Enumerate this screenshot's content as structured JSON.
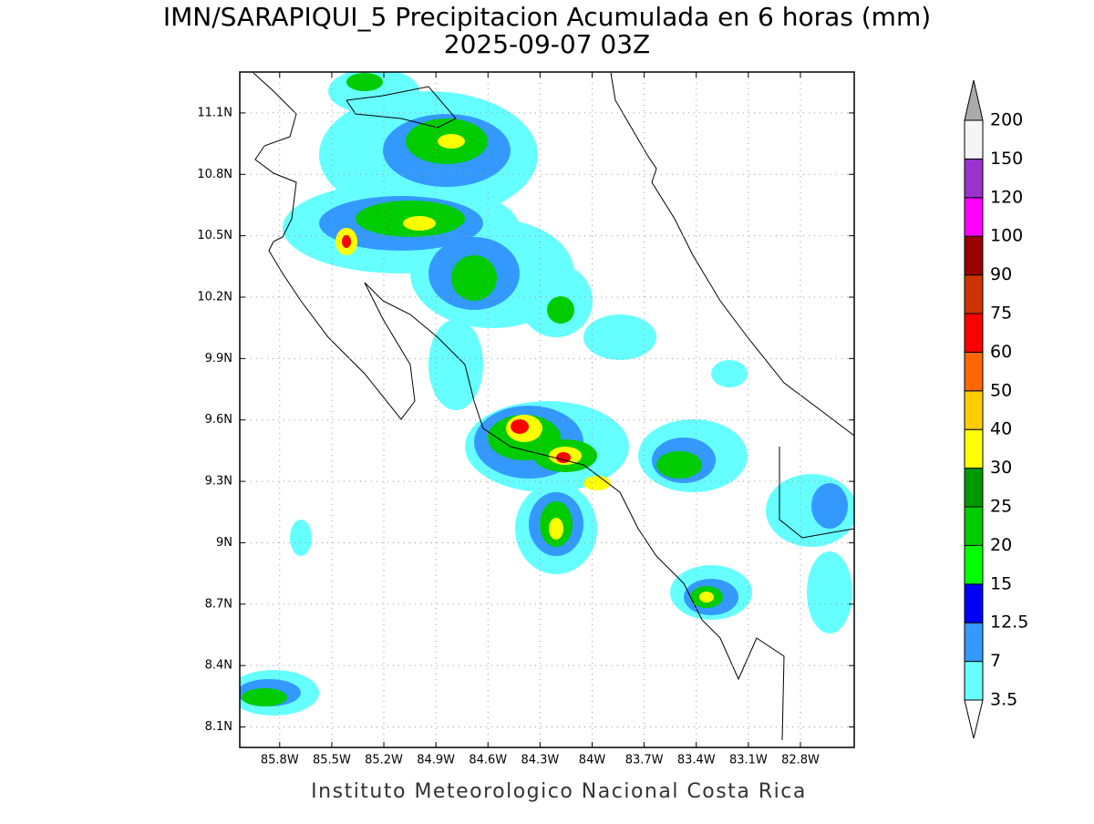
{
  "title": "IMN/SARAPIQUI_5 Precipitacion Acumulada en 6 horas (mm)",
  "subtitle": "2025-09-07 03Z",
  "footer": "Instituto Meteorologico Nacional Costa Rica",
  "map": {
    "xlim": [
      -86.03,
      -82.49
    ],
    "ylim": [
      8.0,
      11.3
    ],
    "xticks": [
      {
        "value": -85.8,
        "label": "85.8W"
      },
      {
        "value": -85.5,
        "label": "85.5W"
      },
      {
        "value": -85.2,
        "label": "85.2W"
      },
      {
        "value": -84.9,
        "label": "84.9W"
      },
      {
        "value": -84.6,
        "label": "84.6W"
      },
      {
        "value": -84.3,
        "label": "84.3W"
      },
      {
        "value": -84,
        "label": "84W"
      },
      {
        "value": -83.7,
        "label": "83.7W"
      },
      {
        "value": -83.4,
        "label": "83.4W"
      },
      {
        "value": -83.1,
        "label": "83.1W"
      },
      {
        "value": -82.8,
        "label": "82.8W"
      }
    ],
    "yticks": [
      {
        "value": 8.1,
        "label": "8.1N"
      },
      {
        "value": 8.4,
        "label": "8.4N"
      },
      {
        "value": 8.7,
        "label": "8.7N"
      },
      {
        "value": 9,
        "label": "9N"
      },
      {
        "value": 9.3,
        "label": "9.3N"
      },
      {
        "value": 9.6,
        "label": "9.6N"
      },
      {
        "value": 9.9,
        "label": "9.9N"
      },
      {
        "value": 10.2,
        "label": "10.2N"
      },
      {
        "value": 10.5,
        "label": "10.5N"
      },
      {
        "value": 10.8,
        "label": "10.8N"
      },
      {
        "value": 11.1,
        "label": "11.1N"
      }
    ],
    "grid": true
  },
  "colorbar": {
    "levels": [
      3.5,
      7,
      12.5,
      15,
      20,
      25,
      30,
      40,
      50,
      60,
      75,
      90,
      100,
      120,
      150,
      200
    ],
    "colors": [
      "#ffffff",
      "#66ffff",
      "#3399ff",
      "#0000ff",
      "#00ff00",
      "#00cc00",
      "#009900",
      "#ffff00",
      "#ffcc00",
      "#ff6600",
      "#ff0000",
      "#cc3300",
      "#990000",
      "#ff00ff",
      "#9933cc",
      "#f5f5f5",
      "#aaaaaa"
    ]
  }
}
